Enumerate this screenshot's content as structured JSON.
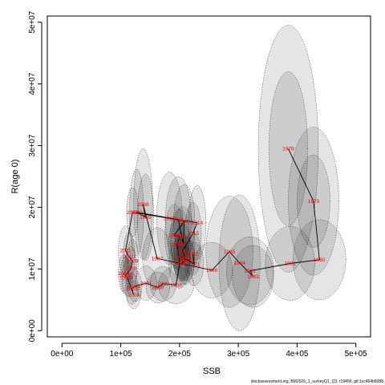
{
  "chart_data": {
    "type": "scatter",
    "title": "",
    "xlabel": "SSB",
    "ylabel": "R(age 0)",
    "xlim": [
      -25000,
      525000
    ],
    "ylim": [
      -1000000,
      51000000
    ],
    "x_ticks": [
      {
        "value": 0,
        "label": "0e+00"
      },
      {
        "value": 100000,
        "label": "1e+05"
      },
      {
        "value": 200000,
        "label": "2e+05"
      },
      {
        "value": 300000,
        "label": "3e+05"
      },
      {
        "value": 400000,
        "label": "4e+05"
      },
      {
        "value": 500000,
        "label": "5e+05"
      }
    ],
    "y_ticks": [
      {
        "value": 0,
        "label": "0e+00"
      },
      {
        "value": 10000000,
        "label": "1e+07"
      },
      {
        "value": 20000000,
        "label": "2e+07"
      },
      {
        "value": 30000000,
        "label": "3e+07"
      },
      {
        "value": 40000000,
        "label": "4e+07"
      },
      {
        "value": 50000000,
        "label": "5e+07"
      }
    ],
    "grid": false,
    "series": [
      {
        "points": [
          {
            "year": "1978",
            "x": 385000,
            "y": 29500000
          },
          {
            "year": "1979",
            "x": 428000,
            "y": 21000000
          },
          {
            "year": "1980",
            "x": 438000,
            "y": 11500000
          },
          {
            "year": "1981",
            "x": 388000,
            "y": 10900000
          },
          {
            "year": "1982",
            "x": 320000,
            "y": 9700000
          },
          {
            "year": "1983",
            "x": 325000,
            "y": 8800000
          },
          {
            "year": "1984",
            "x": 302000,
            "y": 11000000
          },
          {
            "year": "1985",
            "x": 285000,
            "y": 12800000
          },
          {
            "year": "1986",
            "x": 255000,
            "y": 9800000
          },
          {
            "year": "1987",
            "x": 162000,
            "y": 11700000
          },
          {
            "year": "1988",
            "x": 138000,
            "y": 20500000
          },
          {
            "year": "1989",
            "x": 142000,
            "y": 18400000
          },
          {
            "year": "1990",
            "x": 127000,
            "y": 19200000
          },
          {
            "year": "1991",
            "x": 198000,
            "y": 18000000
          },
          {
            "year": "1992",
            "x": 206000,
            "y": 14100000
          },
          {
            "year": "1993",
            "x": 208000,
            "y": 17700000
          },
          {
            "year": "1994",
            "x": 191000,
            "y": 15500000
          },
          {
            "year": "1995",
            "x": 200000,
            "y": 15200000
          },
          {
            "year": "1996",
            "x": 196000,
            "y": 14000000
          },
          {
            "year": "1997",
            "x": 200000,
            "y": 10900000
          },
          {
            "year": "1998",
            "x": 194000,
            "y": 7400000
          },
          {
            "year": "1999",
            "x": 172000,
            "y": 7600000
          },
          {
            "year": "2000",
            "x": 163000,
            "y": 7000000
          },
          {
            "year": "2001",
            "x": 143000,
            "y": 7700000
          },
          {
            "year": "2002",
            "x": 124000,
            "y": 7200000
          },
          {
            "year": "2003",
            "x": 119000,
            "y": 6800000
          },
          {
            "year": "2004",
            "x": 122000,
            "y": 5800000
          },
          {
            "year": "2005",
            "x": 111000,
            "y": 8600000
          },
          {
            "year": "2006",
            "x": 105000,
            "y": 9300000
          },
          {
            "year": "2007",
            "x": 108000,
            "y": 8900000
          },
          {
            "year": "2008",
            "x": 117000,
            "y": 10100000
          },
          {
            "year": "2009",
            "x": 120000,
            "y": 11300000
          },
          {
            "year": "2010",
            "x": 114000,
            "y": 12000000
          },
          {
            "year": "2011",
            "x": 108000,
            "y": 13000000
          },
          {
            "year": "2012",
            "x": 120000,
            "y": 19200000
          },
          {
            "year": "2013",
            "x": 183000,
            "y": 18200000
          },
          {
            "year": "2014",
            "x": 230000,
            "y": 17500000
          },
          {
            "year": "2015",
            "x": 223000,
            "y": 15800000
          },
          {
            "year": "2016",
            "x": 205000,
            "y": 12900000
          },
          {
            "year": "2017",
            "x": 210000,
            "y": 11500000
          },
          {
            "year": "2018",
            "x": 203000,
            "y": 12000000
          },
          {
            "year": "2019",
            "x": 205000,
            "y": 11000000
          },
          {
            "year": "2020",
            "x": 212000,
            "y": 11600000
          },
          {
            "year": "2021",
            "x": 225000,
            "y": 10800000
          },
          {
            "year": "2022",
            "x": 222000,
            "y": 12500000
          }
        ]
      }
    ],
    "uncertainty_ellipses": [
      {
        "year": "1978",
        "cx": 385000,
        "cy": 29500000,
        "rx": 51000,
        "ry": 20000000
      },
      {
        "year": "1978",
        "cx": 385000,
        "cy": 29500000,
        "rx": 33000,
        "ry": 12500000
      },
      {
        "year": "1979",
        "cx": 428000,
        "cy": 21000000,
        "rx": 43000,
        "ry": 12000000
      },
      {
        "year": "1979",
        "cx": 428000,
        "cy": 21000000,
        "rx": 28000,
        "ry": 7500000
      },
      {
        "year": "1980",
        "cx": 438000,
        "cy": 11500000,
        "rx": 45000,
        "ry": 6500000
      },
      {
        "year": "1981",
        "cx": 388000,
        "cy": 10900000,
        "rx": 42000,
        "ry": 6000000
      },
      {
        "year": "1982",
        "cx": 320000,
        "cy": 9700000,
        "rx": 40000,
        "ry": 5500000
      },
      {
        "year": "1983",
        "cx": 325000,
        "cy": 8800000,
        "rx": 35000,
        "ry": 5000000
      },
      {
        "year": "1984",
        "cx": 302000,
        "cy": 11000000,
        "rx": 35000,
        "ry": 11000000
      },
      {
        "year": "1985",
        "cx": 285000,
        "cy": 12800000,
        "rx": 40000,
        "ry": 9000000
      },
      {
        "year": "1986",
        "cx": 255000,
        "cy": 9800000,
        "rx": 35000,
        "ry": 4500000
      },
      {
        "year": "1987",
        "cx": 162000,
        "cy": 11700000,
        "rx": 25000,
        "ry": 5000000
      },
      {
        "year": "1988",
        "cx": 138000,
        "cy": 20500000,
        "rx": 16000,
        "ry": 9000000
      },
      {
        "year": "1989",
        "cx": 142000,
        "cy": 18400000,
        "rx": 14000,
        "ry": 7000000
      },
      {
        "year": "1990",
        "cx": 127000,
        "cy": 19200000,
        "rx": 12000,
        "ry": 7000000
      },
      {
        "year": "1991",
        "cx": 198000,
        "cy": 18000000,
        "rx": 22000,
        "ry": 7000000
      },
      {
        "year": "1992",
        "cx": 206000,
        "cy": 14100000,
        "rx": 20000,
        "ry": 6000000
      },
      {
        "year": "1993",
        "cx": 208000,
        "cy": 17700000,
        "rx": 18000,
        "ry": 6000000
      },
      {
        "year": "1994",
        "cx": 191000,
        "cy": 15500000,
        "rx": 16000,
        "ry": 5000000
      },
      {
        "year": "1995",
        "cx": 200000,
        "cy": 15200000,
        "rx": 16000,
        "ry": 4500000
      },
      {
        "year": "1996",
        "cx": 196000,
        "cy": 14000000,
        "rx": 15000,
        "ry": 4000000
      },
      {
        "year": "1997",
        "cx": 200000,
        "cy": 10900000,
        "rx": 18000,
        "ry": 4000000
      },
      {
        "year": "1998",
        "cx": 194000,
        "cy": 7400000,
        "rx": 30000,
        "ry": 3000000
      },
      {
        "year": "1999",
        "cx": 172000,
        "cy": 7600000,
        "rx": 22000,
        "ry": 2800000
      },
      {
        "year": "2000",
        "cx": 163000,
        "cy": 7000000,
        "rx": 20000,
        "ry": 2500000
      },
      {
        "year": "2001",
        "cx": 143000,
        "cy": 7700000,
        "rx": 18000,
        "ry": 2800000
      },
      {
        "year": "2002",
        "cx": 124000,
        "cy": 7200000,
        "rx": 12000,
        "ry": 2500000
      },
      {
        "year": "2003",
        "cx": 119000,
        "cy": 6800000,
        "rx": 11000,
        "ry": 2500000
      },
      {
        "year": "2004",
        "cx": 122000,
        "cy": 5800000,
        "rx": 12000,
        "ry": 2200000
      },
      {
        "year": "2005",
        "cx": 111000,
        "cy": 8600000,
        "rx": 9000,
        "ry": 3000000
      },
      {
        "year": "2006",
        "cx": 105000,
        "cy": 9300000,
        "rx": 9000,
        "ry": 3000000
      },
      {
        "year": "2007",
        "cx": 108000,
        "cy": 8900000,
        "rx": 9000,
        "ry": 3000000
      },
      {
        "year": "2008",
        "cx": 117000,
        "cy": 10100000,
        "rx": 10000,
        "ry": 3500000
      },
      {
        "year": "2009",
        "cx": 120000,
        "cy": 11300000,
        "rx": 10000,
        "ry": 3500000
      },
      {
        "year": "2010",
        "cx": 114000,
        "cy": 12000000,
        "rx": 10000,
        "ry": 4000000
      },
      {
        "year": "2011",
        "cx": 108000,
        "cy": 13000000,
        "rx": 12000,
        "ry": 4000000
      },
      {
        "year": "2012",
        "cx": 120000,
        "cy": 19200000,
        "rx": 10000,
        "ry": 4000000
      },
      {
        "year": "2013",
        "cx": 183000,
        "cy": 18200000,
        "rx": 22000,
        "ry": 7500000
      },
      {
        "year": "2014",
        "cx": 230000,
        "cy": 17500000,
        "rx": 15000,
        "ry": 6000000
      },
      {
        "year": "2015",
        "cx": 223000,
        "cy": 15800000,
        "rx": 14000,
        "ry": 5000000
      },
      {
        "year": "2016",
        "cx": 205000,
        "cy": 12900000,
        "rx": 14000,
        "ry": 4500000
      },
      {
        "year": "2017",
        "cx": 210000,
        "cy": 11500000,
        "rx": 15000,
        "ry": 4000000
      },
      {
        "year": "2018",
        "cx": 203000,
        "cy": 12000000,
        "rx": 14000,
        "ry": 4000000
      },
      {
        "year": "2019",
        "cx": 205000,
        "cy": 11000000,
        "rx": 14000,
        "ry": 3500000
      },
      {
        "year": "2020",
        "cx": 212000,
        "cy": 11600000,
        "rx": 14000,
        "ry": 3500000
      },
      {
        "year": "2021",
        "cx": 225000,
        "cy": 10800000,
        "rx": 16000,
        "ry": 3500000
      },
      {
        "year": "2022",
        "cx": 222000,
        "cy": 12500000,
        "rx": 14000,
        "ry": 3500000
      }
    ],
    "colors": {
      "ellipse_fill": "#000000",
      "ellipse_stroke": "#333333",
      "line": "#000000",
      "year_label": "#ff0000"
    }
  },
  "credit": "stockassessment.org, BM2026_1_surveyQ1_Q3, r19456, git:1cc464b8088"
}
